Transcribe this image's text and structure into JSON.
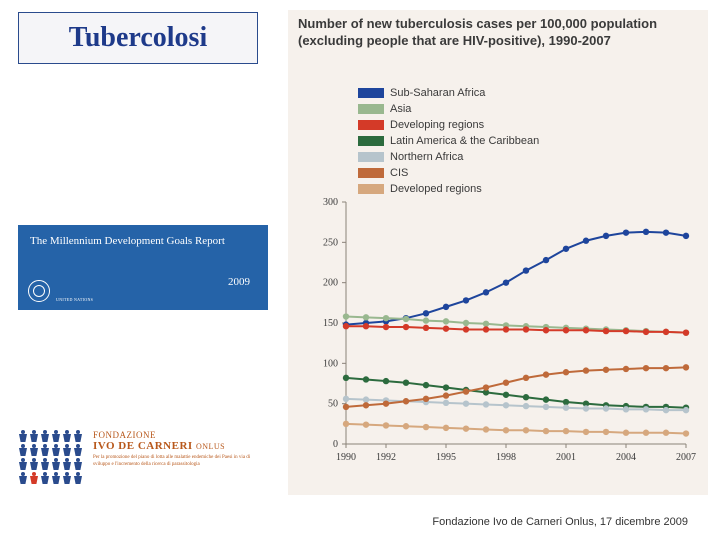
{
  "title": "Tubercolosi",
  "mdg": {
    "title": "The Millennium Development Goals Report",
    "year": "2009",
    "org": "UNITED NATIONS"
  },
  "foundation": {
    "line1": "FONDAZIONE",
    "line2": "IVO DE CARNERI",
    "suffix": "ONLUS",
    "tagline": "Per la promozione del piano di lotta alle malattie endemiche dei Paesi in via di sviluppo e l'incremento della ricerca di parassitologia"
  },
  "footer": "Fondazione Ivo de Carneri Onlus, 17 dicembre 2009",
  "chart": {
    "type": "line",
    "title": "Number of new tuberculosis cases per 100,000 population (excluding people that are HIV-positive), 1990-2007",
    "background_color": "#f6f1ec",
    "axis_color": "#8a8278",
    "text_color": "#3a3a3a",
    "label_fontsize": 10,
    "title_fontsize": 13,
    "marker": "circle",
    "marker_size": 3.2,
    "line_width": 2,
    "ylim": [
      0,
      300
    ],
    "ytick_step": 50,
    "x_categories": [
      "1990",
      "1991",
      "1992",
      "1993",
      "1994",
      "1995",
      "1996",
      "1997",
      "1998",
      "1999",
      "2000",
      "2001",
      "2002",
      "2003",
      "2004",
      "2005",
      "2006",
      "2007"
    ],
    "x_tick_labels": [
      "1990",
      "1992",
      "1995",
      "1998",
      "2001",
      "2004",
      "2007"
    ],
    "x_tick_idx": [
      0,
      2,
      5,
      8,
      11,
      14,
      17
    ],
    "legend_position": "top-inside",
    "series": [
      {
        "name": "Sub-Saharan Africa",
        "color": "#1e459c",
        "values": [
          148,
          150,
          152,
          156,
          162,
          170,
          178,
          188,
          200,
          215,
          228,
          242,
          252,
          258,
          262,
          263,
          262,
          258
        ]
      },
      {
        "name": "Asia",
        "color": "#99b88f",
        "values": [
          158,
          157,
          156,
          155,
          153,
          152,
          150,
          149,
          147,
          146,
          145,
          144,
          143,
          142,
          141,
          140,
          139,
          138
        ]
      },
      {
        "name": "Developing regions",
        "color": "#d43a28",
        "values": [
          146,
          146,
          145,
          145,
          144,
          143,
          142,
          142,
          142,
          142,
          141,
          141,
          141,
          140,
          140,
          139,
          139,
          138
        ]
      },
      {
        "name": "Latin America & the Caribbean",
        "color": "#2c6b3e",
        "values": [
          82,
          80,
          78,
          76,
          73,
          70,
          67,
          64,
          61,
          58,
          55,
          52,
          50,
          48,
          47,
          46,
          46,
          45
        ]
      },
      {
        "name": "Northern Africa",
        "color": "#b6c4cc",
        "values": [
          56,
          55,
          54,
          53,
          52,
          51,
          50,
          49,
          48,
          47,
          46,
          45,
          44,
          44,
          43,
          43,
          42,
          42
        ]
      },
      {
        "name": "CIS",
        "color": "#bf6a3a",
        "values": [
          46,
          48,
          50,
          53,
          56,
          60,
          65,
          70,
          76,
          82,
          86,
          89,
          91,
          92,
          93,
          94,
          94,
          95
        ]
      },
      {
        "name": "Developed regions",
        "color": "#d6a87e",
        "values": [
          25,
          24,
          23,
          22,
          21,
          20,
          19,
          18,
          17,
          17,
          16,
          16,
          15,
          15,
          14,
          14,
          14,
          13
        ]
      }
    ]
  }
}
